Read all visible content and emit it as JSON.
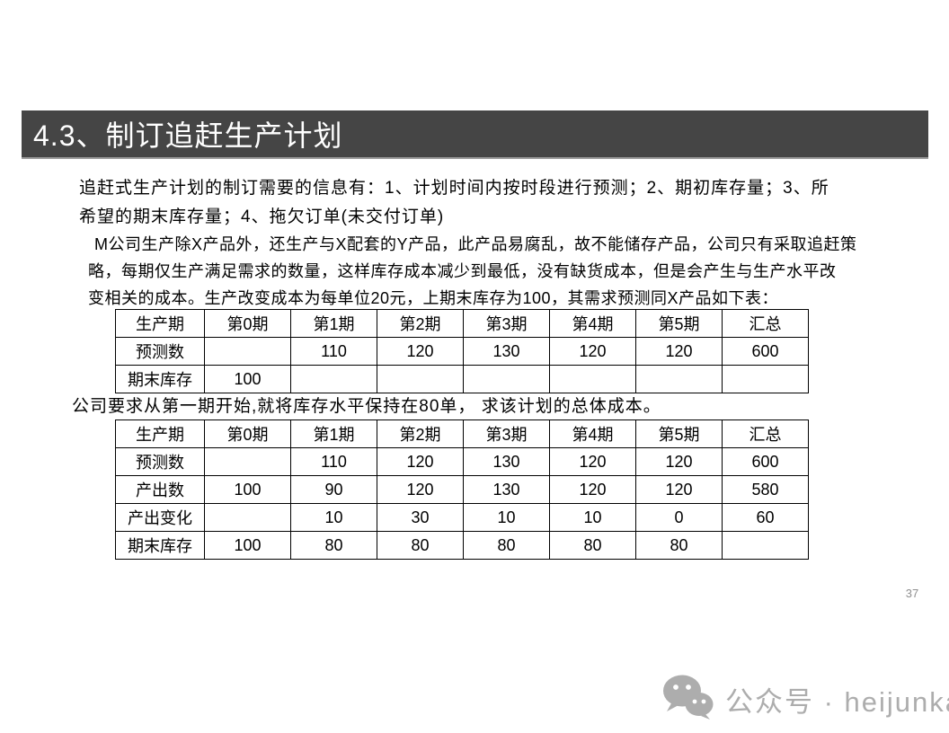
{
  "title": {
    "text": "4.3、制订追赶生产计划",
    "bar_color": "#454545",
    "text_color": "#ffffff"
  },
  "intro": {
    "lines": [
      "追赶式生产计划的制订需要的信息有：1、计划时间内按时段进行预测；2、期初库存量；3、所",
      "希望的期末库存量；4、拖欠订单(未交付订单)"
    ]
  },
  "case": {
    "lines": [
      "M公司生产除X产品外，还生产与X配套的Y产品，此产品易腐乱，故不能储存产品，公司只有采取追赶策",
      "略，每期仅生产满足需求的数量，这样库存成本减少到最低，没有缺货成本，但是会产生与生产水平改",
      "变相关的成本。生产改变成本为每单位20元，上期末库存为100，其需求预测同X产品如下表："
    ]
  },
  "forecast_table": {
    "headers": [
      "生产期",
      "第0期",
      "第1期",
      "第2期",
      "第3期",
      "第4期",
      "第5期",
      "汇总"
    ],
    "rows": [
      [
        "预测数",
        "",
        "110",
        "120",
        "130",
        "120",
        "120",
        "600"
      ],
      [
        "期末库存",
        "100",
        "",
        "",
        "",
        "",
        "",
        ""
      ]
    ]
  },
  "question": {
    "text": "公司要求从第一期开始,就将库存水平保持在80单， 求该计划的总体成本。"
  },
  "plan_table": {
    "headers": [
      "生产期",
      "第0期",
      "第1期",
      "第2期",
      "第3期",
      "第4期",
      "第5期",
      "汇总"
    ],
    "rows": [
      [
        "预测数",
        "",
        "110",
        "120",
        "130",
        "120",
        "120",
        "600"
      ],
      [
        "产出数",
        "100",
        "90",
        "120",
        "130",
        "120",
        "120",
        "580"
      ],
      [
        "产出变化",
        "",
        "10",
        "30",
        "10",
        "10",
        "0",
        "60"
      ],
      [
        "期末库存",
        "100",
        "80",
        "80",
        "80",
        "80",
        "80",
        ""
      ]
    ]
  },
  "page": {
    "number": "37"
  },
  "watermark": {
    "icon": "wechat-icon",
    "text": "公众号 · heijunka",
    "color": "#adadad"
  }
}
